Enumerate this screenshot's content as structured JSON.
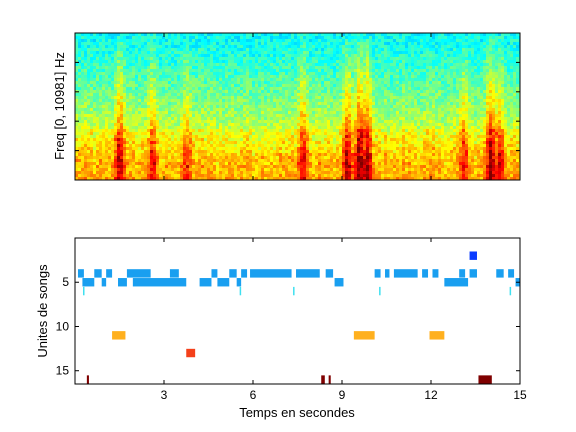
{
  "chart_data": [
    {
      "type": "heatmap",
      "description_of_content": "spectrogram",
      "ylabel": "Freq [0, 10981] Hz",
      "xlim": [
        0,
        15
      ],
      "xticks_visible": false,
      "yticks_visible": false,
      "colormap": [
        "#00007f",
        "#0000ff",
        "#00ffff",
        "#ffff00",
        "#ff0000",
        "#7f0000"
      ],
      "background_color": "#2fd0c8",
      "energy_band_color": "#e8f03a",
      "bright_events": [
        {
          "t": 1.45,
          "intensity": 0.8
        },
        {
          "t": 2.55,
          "intensity": 0.6
        },
        {
          "t": 3.7,
          "intensity": 0.5
        },
        {
          "t": 7.6,
          "intensity": 0.7
        },
        {
          "t": 9.1,
          "intensity": 0.85
        },
        {
          "t": 9.5,
          "intensity": 1.0
        },
        {
          "t": 9.75,
          "intensity": 0.95
        },
        {
          "t": 13.0,
          "intensity": 0.6
        },
        {
          "t": 13.9,
          "intensity": 0.95
        },
        {
          "t": 14.2,
          "intensity": 0.7
        }
      ]
    },
    {
      "type": "scatter",
      "xlabel": "Temps en secondes",
      "ylabel": "Unites de songs",
      "xlim": [
        0,
        15
      ],
      "ylim": [
        16.5,
        0
      ],
      "xticks": [
        3,
        6,
        9,
        12,
        15
      ],
      "yticks": [
        5,
        10,
        15
      ],
      "segments": [
        {
          "unit": 2,
          "start": 13.3,
          "end": 13.55,
          "color": "#0a3cff"
        },
        {
          "unit": 4,
          "start": 0.1,
          "end": 0.3,
          "color": "#199ff0"
        },
        {
          "unit": 4,
          "start": 0.65,
          "end": 0.9,
          "color": "#199ff0"
        },
        {
          "unit": 4,
          "start": 1.05,
          "end": 1.25,
          "color": "#199ff0"
        },
        {
          "unit": 4,
          "start": 1.75,
          "end": 2.55,
          "color": "#199ff0"
        },
        {
          "unit": 4,
          "start": 3.2,
          "end": 3.5,
          "color": "#199ff0"
        },
        {
          "unit": 4,
          "start": 4.6,
          "end": 4.8,
          "color": "#199ff0"
        },
        {
          "unit": 4,
          "start": 5.2,
          "end": 5.45,
          "color": "#199ff0"
        },
        {
          "unit": 4,
          "start": 5.6,
          "end": 5.8,
          "color": "#199ff0"
        },
        {
          "unit": 4,
          "start": 5.9,
          "end": 7.3,
          "color": "#199ff0"
        },
        {
          "unit": 4,
          "start": 7.45,
          "end": 8.25,
          "color": "#199ff0"
        },
        {
          "unit": 4,
          "start": 8.45,
          "end": 8.7,
          "color": "#199ff0"
        },
        {
          "unit": 4,
          "start": 10.1,
          "end": 10.3,
          "color": "#199ff0"
        },
        {
          "unit": 4,
          "start": 10.45,
          "end": 10.6,
          "color": "#199ff0"
        },
        {
          "unit": 4,
          "start": 10.75,
          "end": 11.55,
          "color": "#199ff0"
        },
        {
          "unit": 4,
          "start": 11.7,
          "end": 11.9,
          "color": "#199ff0"
        },
        {
          "unit": 4,
          "start": 12.05,
          "end": 12.25,
          "color": "#199ff0"
        },
        {
          "unit": 4,
          "start": 12.95,
          "end": 13.15,
          "color": "#199ff0"
        },
        {
          "unit": 4,
          "start": 13.3,
          "end": 13.55,
          "color": "#199ff0"
        },
        {
          "unit": 4,
          "start": 14.2,
          "end": 14.45,
          "color": "#199ff0"
        },
        {
          "unit": 4,
          "start": 14.6,
          "end": 14.8,
          "color": "#199ff0"
        },
        {
          "unit": 5,
          "start": 0.25,
          "end": 0.65,
          "color": "#199ff0"
        },
        {
          "unit": 5,
          "start": 0.9,
          "end": 1.05,
          "color": "#199ff0"
        },
        {
          "unit": 5,
          "start": 1.45,
          "end": 1.75,
          "color": "#199ff0"
        },
        {
          "unit": 5,
          "start": 1.95,
          "end": 3.75,
          "color": "#199ff0"
        },
        {
          "unit": 5,
          "start": 4.2,
          "end": 4.6,
          "color": "#199ff0"
        },
        {
          "unit": 5,
          "start": 4.8,
          "end": 5.2,
          "color": "#199ff0"
        },
        {
          "unit": 5,
          "start": 5.45,
          "end": 5.6,
          "color": "#199ff0"
        },
        {
          "unit": 5,
          "start": 8.75,
          "end": 9.05,
          "color": "#199ff0"
        },
        {
          "unit": 5,
          "start": 12.45,
          "end": 13.25,
          "color": "#199ff0"
        },
        {
          "unit": 5,
          "start": 14.85,
          "end": 15.0,
          "color": "#199ff0"
        },
        {
          "unit": 6,
          "start": 0.27,
          "end": 0.32,
          "color": "#3fe0f0"
        },
        {
          "unit": 6,
          "start": 5.55,
          "end": 5.6,
          "color": "#3fe0f0"
        },
        {
          "unit": 6,
          "start": 7.35,
          "end": 7.4,
          "color": "#3fe0f0"
        },
        {
          "unit": 6,
          "start": 10.25,
          "end": 10.3,
          "color": "#3fe0f0"
        },
        {
          "unit": 6,
          "start": 14.65,
          "end": 14.7,
          "color": "#3fe0f0"
        },
        {
          "unit": 11,
          "start": 1.25,
          "end": 1.7,
          "color": "#ffb01e"
        },
        {
          "unit": 11,
          "start": 9.4,
          "end": 10.1,
          "color": "#ffb01e"
        },
        {
          "unit": 11,
          "start": 11.95,
          "end": 12.45,
          "color": "#ffb01e"
        },
        {
          "unit": 13,
          "start": 3.75,
          "end": 4.05,
          "color": "#f4401a"
        },
        {
          "unit": 16,
          "start": 0.4,
          "end": 0.47,
          "color": "#7f0000"
        },
        {
          "unit": 16,
          "start": 8.3,
          "end": 8.42,
          "color": "#7f0000"
        },
        {
          "unit": 16,
          "start": 8.55,
          "end": 8.62,
          "color": "#7f0000"
        },
        {
          "unit": 16,
          "start": 13.6,
          "end": 14.05,
          "color": "#7f0000"
        }
      ]
    }
  ]
}
